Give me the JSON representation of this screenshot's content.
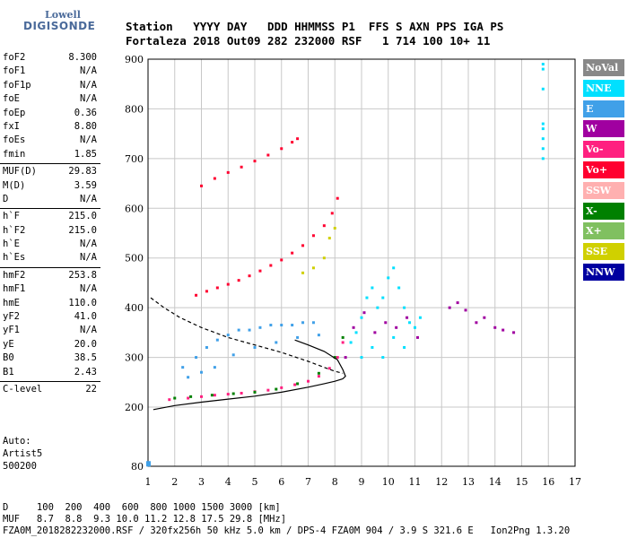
{
  "logo": {
    "line1": "Lowell",
    "line2": "DIGISONDE"
  },
  "header": {
    "labels": "Station   YYYY DAY   DDD HHMMSS P1  FFS S AXN PPS IGA PS",
    "values": "Fortaleza 2018 Out09 282 232000 RSF   1 714 100 10+ 11"
  },
  "params": [
    {
      "group": [
        {
          "k": "foF2",
          "v": "8.300"
        },
        {
          "k": "foF1",
          "v": "N/A"
        },
        {
          "k": "foF1p",
          "v": "N/A"
        },
        {
          "k": "foE",
          "v": "N/A"
        },
        {
          "k": "foEp",
          "v": "0.36"
        },
        {
          "k": "fxI",
          "v": "8.80"
        },
        {
          "k": "foEs",
          "v": "N/A"
        },
        {
          "k": "fmin",
          "v": "1.85"
        }
      ]
    },
    {
      "group": [
        {
          "k": "MUF(D)",
          "v": "29.83"
        },
        {
          "k": "M(D)",
          "v": "3.59"
        },
        {
          "k": "D",
          "v": "N/A"
        }
      ]
    },
    {
      "group": [
        {
          "k": "h`F",
          "v": "215.0"
        },
        {
          "k": "h`F2",
          "v": "215.0"
        },
        {
          "k": "h`E",
          "v": "N/A"
        },
        {
          "k": "h`Es",
          "v": "N/A"
        }
      ]
    },
    {
      "group": [
        {
          "k": "hmF2",
          "v": "253.8"
        },
        {
          "k": "hmF1",
          "v": "N/A"
        },
        {
          "k": "hmE",
          "v": "110.0"
        },
        {
          "k": "yF2",
          "v": "41.0"
        },
        {
          "k": "yF1",
          "v": "N/A"
        },
        {
          "k": "yE",
          "v": "20.0"
        },
        {
          "k": "B0",
          "v": "38.5"
        },
        {
          "k": "B1",
          "v": "2.43"
        }
      ]
    },
    {
      "group": [
        {
          "k": "C-level",
          "v": "22"
        }
      ]
    }
  ],
  "auto": [
    "Auto:",
    "Artist5",
    "500200"
  ],
  "legend": [
    {
      "label": "NoVal",
      "color": "#888888"
    },
    {
      "label": "NNE",
      "color": "#00e0ff"
    },
    {
      "label": "E",
      "color": "#40a0e8"
    },
    {
      "label": "W",
      "color": "#a000a0"
    },
    {
      "label": "Vo-",
      "color": "#ff2080"
    },
    {
      "label": "Vo+",
      "color": "#ff0030"
    },
    {
      "label": "SSW",
      "color": "#ffb0b0"
    },
    {
      "label": "X-",
      "color": "#008000"
    },
    {
      "label": "X+",
      "color": "#80c060"
    },
    {
      "label": "SSE",
      "color": "#d0d000"
    },
    {
      "label": "NNW",
      "color": "#0000a0"
    }
  ],
  "footer": {
    "line1": "D     100  200  400  600  800 1000 1500 3000 [km]",
    "line2": "MUF   8.7  8.8  9.3 10.0 11.2 12.8 17.5 29.8 [MHz]",
    "line3": "FZA0M_2018282232000.RSF / 320fx256h 50 kHz 5.0 km / DPS-4 FZA0M 904 / 3.9 S 321.6 E   Ion2Png 1.3.20"
  },
  "chart_data": {
    "type": "scatter",
    "xlim": [
      1,
      17
    ],
    "ylim": [
      80,
      900
    ],
    "xticks": [
      1,
      2,
      3,
      4,
      5,
      6,
      7,
      8,
      9,
      10,
      11,
      12,
      13,
      14,
      15,
      16,
      17
    ],
    "yticks": [
      80,
      200,
      300,
      400,
      500,
      600,
      700,
      800,
      900
    ],
    "grid": true,
    "legend_position": "right",
    "series": [
      {
        "color": "#ff2080",
        "points": [
          [
            1.8,
            215
          ],
          [
            2.5,
            218
          ],
          [
            3.0,
            221
          ],
          [
            3.5,
            224
          ],
          [
            4.0,
            226
          ],
          [
            4.5,
            228
          ],
          [
            5.0,
            231
          ],
          [
            5.5,
            234
          ],
          [
            6.0,
            239
          ],
          [
            6.5,
            245
          ],
          [
            7.0,
            252
          ],
          [
            7.4,
            262
          ],
          [
            7.8,
            278
          ],
          [
            8.1,
            300
          ],
          [
            8.3,
            330
          ]
        ]
      },
      {
        "color": "#ff0030",
        "points": [
          [
            2.8,
            425
          ],
          [
            3.2,
            433
          ],
          [
            3.6,
            440
          ],
          [
            4.0,
            447
          ],
          [
            4.4,
            455
          ],
          [
            4.8,
            464
          ],
          [
            5.2,
            474
          ],
          [
            5.6,
            485
          ],
          [
            6.0,
            496
          ],
          [
            6.4,
            510
          ],
          [
            6.8,
            525
          ],
          [
            7.2,
            545
          ],
          [
            7.6,
            565
          ],
          [
            7.9,
            590
          ],
          [
            8.1,
            620
          ]
        ]
      },
      {
        "color": "#ff0030",
        "points": [
          [
            3.0,
            645
          ],
          [
            3.5,
            660
          ],
          [
            4.0,
            672
          ],
          [
            4.5,
            683
          ],
          [
            5.0,
            695
          ],
          [
            5.5,
            707
          ],
          [
            6.0,
            720
          ],
          [
            6.4,
            733
          ],
          [
            6.6,
            740
          ]
        ]
      },
      {
        "color": "#40a0e8",
        "points": [
          [
            2.3,
            280
          ],
          [
            2.8,
            300
          ],
          [
            3.2,
            320
          ],
          [
            3.6,
            335
          ],
          [
            4.0,
            345
          ],
          [
            4.4,
            355
          ],
          [
            4.8,
            355
          ],
          [
            5.2,
            360
          ],
          [
            5.6,
            365
          ],
          [
            6.0,
            365
          ],
          [
            6.4,
            365
          ],
          [
            6.8,
            370
          ],
          [
            7.2,
            370
          ],
          [
            2.5,
            260
          ],
          [
            3.0,
            270
          ],
          [
            3.5,
            280
          ],
          [
            4.2,
            305
          ],
          [
            5.0,
            320
          ],
          [
            5.8,
            330
          ],
          [
            6.6,
            340
          ],
          [
            7.4,
            345
          ]
        ]
      },
      {
        "color": "#00e0ff",
        "points": [
          [
            8.6,
            330
          ],
          [
            8.8,
            350
          ],
          [
            9.0,
            380
          ],
          [
            9.2,
            420
          ],
          [
            9.4,
            440
          ],
          [
            9.6,
            400
          ],
          [
            9.8,
            420
          ],
          [
            10.0,
            460
          ],
          [
            10.2,
            480
          ],
          [
            10.4,
            440
          ],
          [
            10.6,
            400
          ],
          [
            10.8,
            370
          ],
          [
            11.0,
            360
          ],
          [
            11.2,
            380
          ],
          [
            9.0,
            300
          ],
          [
            9.4,
            320
          ],
          [
            9.8,
            300
          ],
          [
            10.2,
            340
          ],
          [
            10.6,
            320
          ]
        ]
      },
      {
        "color": "#a000a0",
        "points": [
          [
            8.4,
            300
          ],
          [
            8.7,
            360
          ],
          [
            9.1,
            390
          ],
          [
            9.5,
            350
          ],
          [
            9.9,
            370
          ],
          [
            10.3,
            360
          ],
          [
            10.7,
            380
          ],
          [
            11.1,
            340
          ],
          [
            12.3,
            400
          ],
          [
            12.6,
            410
          ],
          [
            12.9,
            395
          ],
          [
            13.3,
            370
          ],
          [
            13.6,
            380
          ],
          [
            14.0,
            360
          ],
          [
            14.3,
            355
          ],
          [
            14.7,
            350
          ]
        ]
      },
      {
        "color": "#008000",
        "points": [
          [
            2.0,
            218
          ],
          [
            2.6,
            221
          ],
          [
            3.4,
            224
          ],
          [
            4.2,
            227
          ],
          [
            5.0,
            230
          ],
          [
            5.8,
            236
          ],
          [
            6.6,
            247
          ],
          [
            7.4,
            268
          ],
          [
            8.0,
            300
          ],
          [
            8.3,
            340
          ]
        ]
      },
      {
        "color": "#d0d000",
        "points": [
          [
            7.6,
            500
          ],
          [
            7.8,
            540
          ],
          [
            8.0,
            560
          ],
          [
            7.2,
            480
          ],
          [
            6.8,
            470
          ]
        ]
      },
      {
        "color": "#00e0ff",
        "points": [
          [
            15.8,
            770
          ],
          [
            15.8,
            760
          ],
          [
            15.8,
            740
          ],
          [
            15.8,
            720
          ],
          [
            15.8,
            700
          ],
          [
            15.8,
            890
          ],
          [
            15.8,
            880
          ],
          [
            15.8,
            840
          ]
        ]
      }
    ],
    "curves": [
      {
        "style": "solid",
        "points": [
          [
            1.2,
            195
          ],
          [
            2,
            203
          ],
          [
            3,
            210
          ],
          [
            4,
            216
          ],
          [
            5,
            222
          ],
          [
            6,
            230
          ],
          [
            7,
            240
          ],
          [
            7.6,
            247
          ],
          [
            8.0,
            252
          ],
          [
            8.3,
            257
          ],
          [
            8.4,
            262
          ],
          [
            8.3,
            275
          ],
          [
            8.1,
            295
          ],
          [
            7.6,
            312
          ],
          [
            7.0,
            325
          ],
          [
            6.5,
            335
          ]
        ]
      },
      {
        "style": "dashed",
        "points": [
          [
            1.1,
            420
          ],
          [
            1.6,
            400
          ],
          [
            2.2,
            380
          ],
          [
            3.0,
            360
          ],
          [
            4.0,
            340
          ],
          [
            5.0,
            325
          ],
          [
            6.0,
            310
          ],
          [
            7.0,
            292
          ],
          [
            7.6,
            280
          ],
          [
            8.0,
            272
          ],
          [
            8.3,
            268
          ]
        ]
      }
    ]
  }
}
